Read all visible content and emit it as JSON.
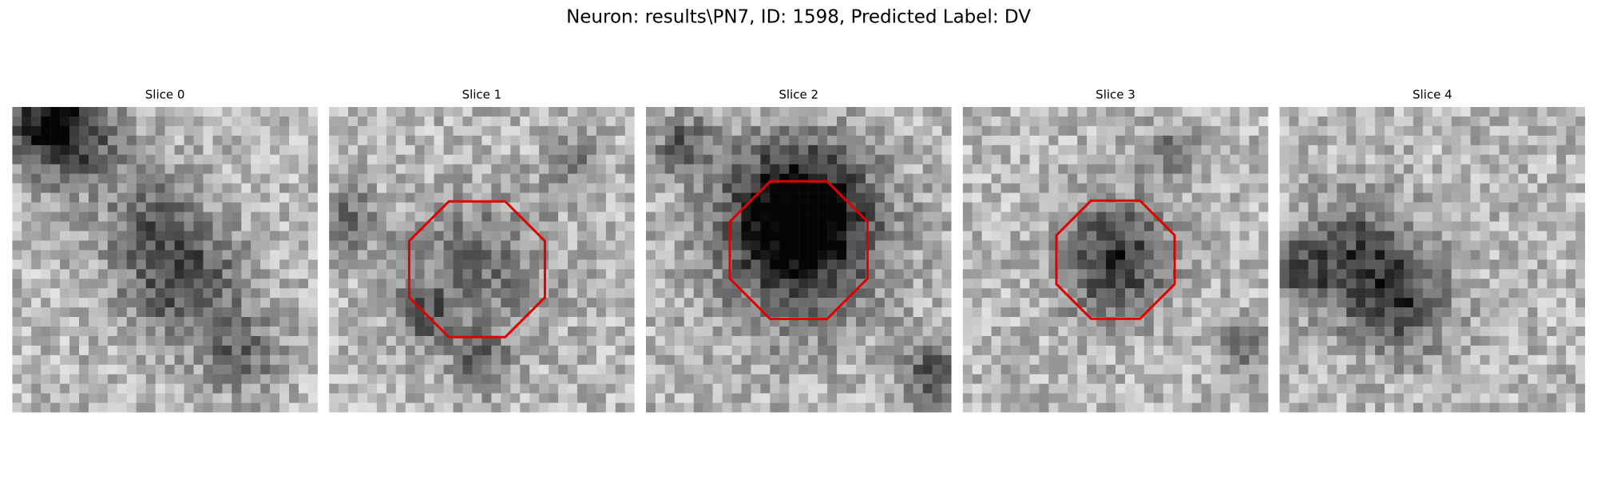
{
  "title": "Neuron: results\\PN7, ID: 1598, Predicted Label: DV",
  "panels": [
    {
      "title": "Slice 0"
    },
    {
      "title": "Slice 1"
    },
    {
      "title": "Slice 2"
    },
    {
      "title": "Slice 3"
    },
    {
      "title": "Slice 4"
    }
  ]
}
